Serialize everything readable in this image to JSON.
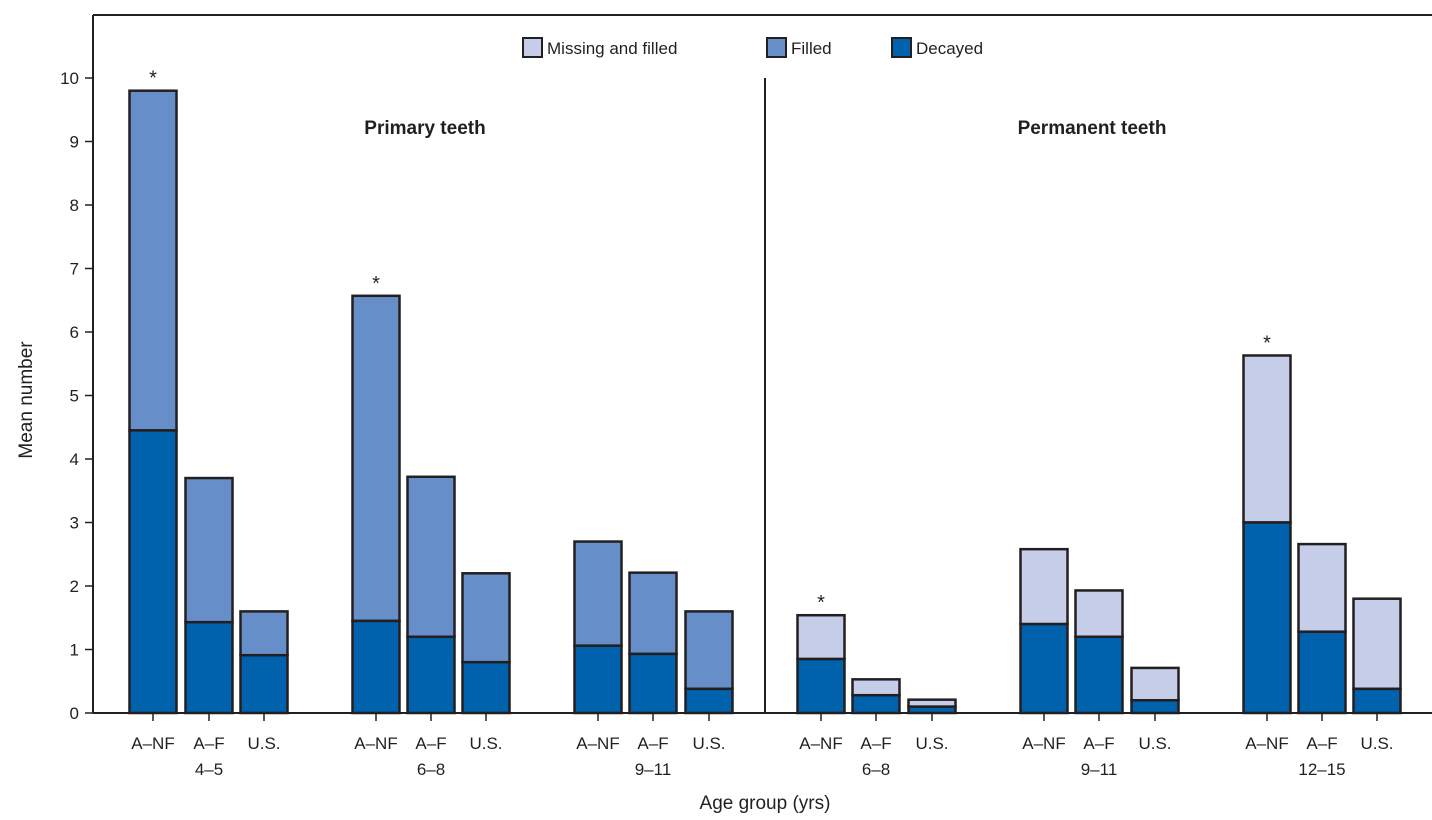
{
  "chart_data": {
    "type": "bar",
    "stacked": true,
    "ylabel": "Mean number",
    "xlabel": "Age group (yrs)",
    "ylim": [
      0,
      10
    ],
    "yticks": [
      0,
      1,
      2,
      3,
      4,
      5,
      6,
      7,
      8,
      9,
      10
    ],
    "legend": {
      "placement": "top-center",
      "entries": [
        {
          "key": "missing_filled",
          "label": "Missing and filled",
          "color": "#c5cde8"
        },
        {
          "key": "filled",
          "label": "Filled",
          "color": "#668fca"
        },
        {
          "key": "decayed",
          "label": "Decayed",
          "color": "#0061ad"
        }
      ]
    },
    "panels": [
      {
        "title": "Primary teeth",
        "top_series": "filled",
        "groups": [
          {
            "label": "4–5",
            "bars": [
              {
                "label": "A–NF",
                "decayed": 4.45,
                "total": 9.8,
                "star": "*"
              },
              {
                "label": "A–F",
                "decayed": 1.43,
                "total": 3.7,
                "star": ""
              },
              {
                "label": "U.S.",
                "decayed": 0.91,
                "total": 1.6,
                "star": ""
              }
            ]
          },
          {
            "label": "6–8",
            "bars": [
              {
                "label": "A–NF",
                "decayed": 1.45,
                "total": 6.57,
                "star": "*"
              },
              {
                "label": "A–F",
                "decayed": 1.2,
                "total": 3.72,
                "star": ""
              },
              {
                "label": "U.S.",
                "decayed": 0.8,
                "total": 2.2,
                "star": ""
              }
            ]
          },
          {
            "label": "9–11",
            "bars": [
              {
                "label": "A–NF",
                "decayed": 1.06,
                "total": 2.7,
                "star": ""
              },
              {
                "label": "A–F",
                "decayed": 0.93,
                "total": 2.21,
                "star": ""
              },
              {
                "label": "U.S.",
                "decayed": 0.38,
                "total": 1.6,
                "star": ""
              }
            ]
          }
        ]
      },
      {
        "title": "Permanent teeth",
        "top_series": "missing_filled",
        "groups": [
          {
            "label": "6–8",
            "bars": [
              {
                "label": "A–NF",
                "decayed": 0.85,
                "total": 1.54,
                "star": "*"
              },
              {
                "label": "A–F",
                "decayed": 0.28,
                "total": 0.53,
                "star": ""
              },
              {
                "label": "U.S.",
                "decayed": 0.1,
                "total": 0.21,
                "star": ""
              }
            ]
          },
          {
            "label": "9–11",
            "bars": [
              {
                "label": "A–NF",
                "decayed": 1.4,
                "total": 2.58,
                "star": ""
              },
              {
                "label": "A–F",
                "decayed": 1.2,
                "total": 1.93,
                "star": ""
              },
              {
                "label": "U.S.",
                "decayed": 0.2,
                "total": 0.71,
                "star": ""
              }
            ]
          },
          {
            "label": "12–15",
            "bars": [
              {
                "label": "A–NF",
                "decayed": 3.0,
                "total": 5.63,
                "star": "*"
              },
              {
                "label": "A–F",
                "decayed": 1.28,
                "total": 2.66,
                "star": ""
              },
              {
                "label": "U.S.",
                "decayed": 0.38,
                "total": 1.8,
                "star": ""
              }
            ]
          }
        ]
      }
    ]
  }
}
